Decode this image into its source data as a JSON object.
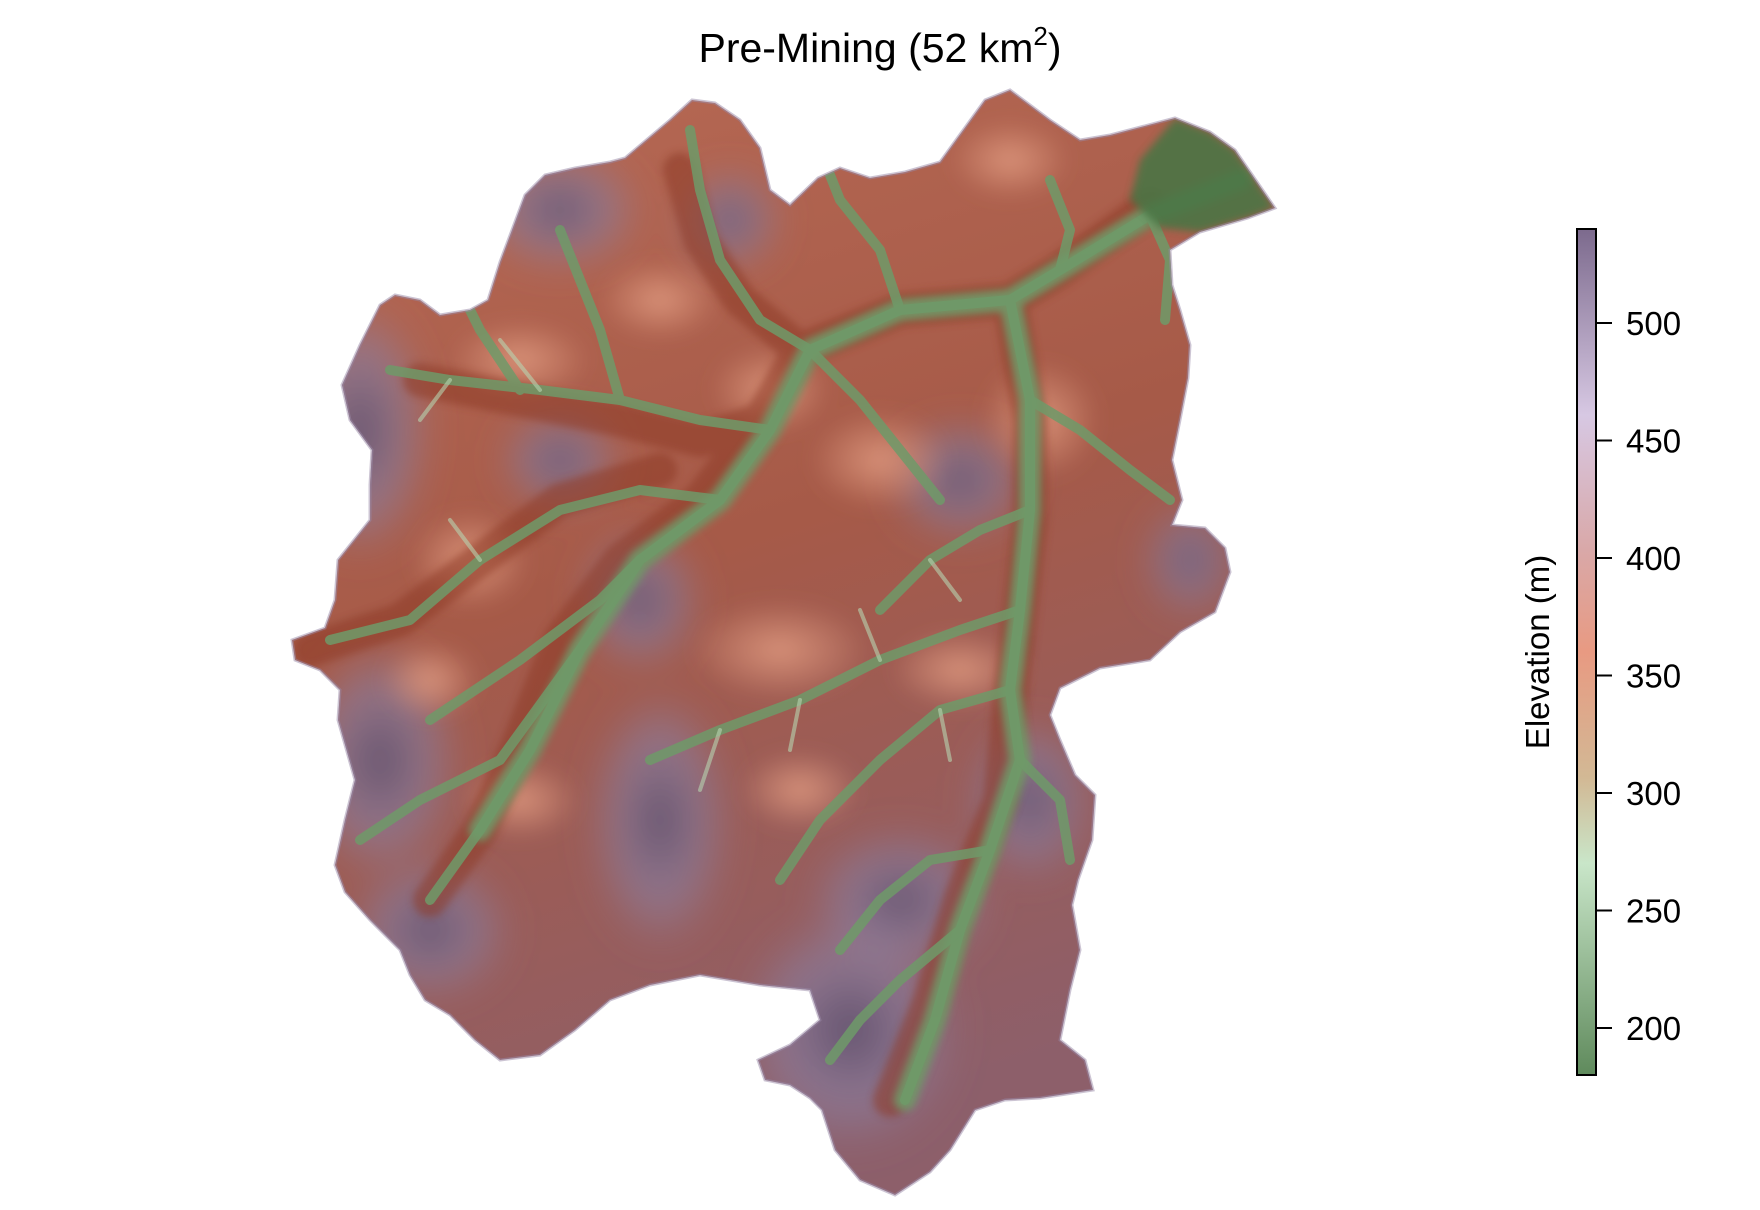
{
  "title": {
    "text": "Pre-Mining (52 km",
    "superscript": "2",
    "suffix": ")"
  },
  "legend": {
    "title": "Elevation (m)",
    "min": 180,
    "max": 540,
    "ticks": [
      {
        "value": 200,
        "label": "200"
      },
      {
        "value": 250,
        "label": "250"
      },
      {
        "value": 300,
        "label": "300"
      },
      {
        "value": 350,
        "label": "350"
      },
      {
        "value": 400,
        "label": "400"
      },
      {
        "value": 450,
        "label": "450"
      },
      {
        "value": 500,
        "label": "500"
      }
    ],
    "colors": {
      "low": "#5f8a5c",
      "green_light": "#c9e6c9",
      "tan": "#d2b995",
      "salmon": "#e89a82",
      "pink": "#d9a8a8",
      "lavender": "#d7c8e3",
      "high": "#7c6a8d"
    }
  },
  "map": {
    "colors": {
      "valley": "#5e8a58",
      "valley_light": "#9bc096",
      "slope_red": "#a64b35",
      "slope_salmon": "#d98c70",
      "ridge_purple": "#8d7fa0",
      "ridge_dark": "#5a4b68",
      "outlet_green": "#4c7444"
    }
  }
}
